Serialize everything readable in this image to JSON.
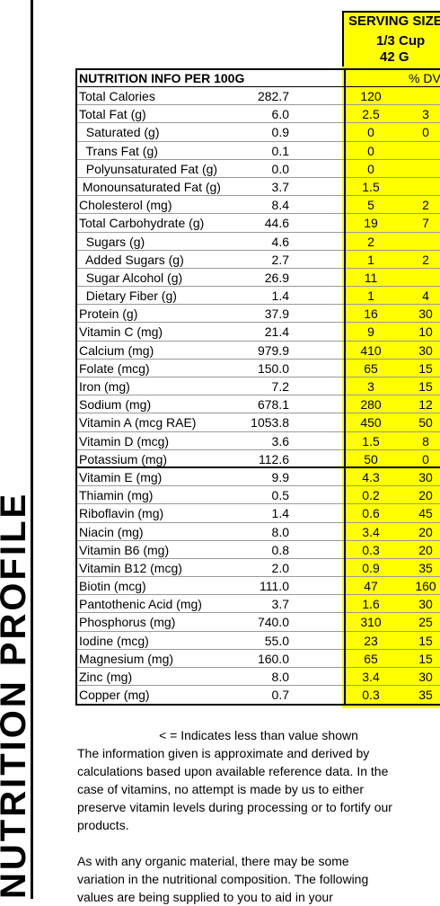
{
  "side_label": "NUTRITION PROFILE",
  "serving": {
    "title": "SERVING SIZE",
    "qty": "1/3 Cup",
    "grams": "42 G"
  },
  "table": {
    "title": "NUTRITION INFO PER 100G",
    "dv_header": "% DV",
    "rows": [
      {
        "name": "Total Calories",
        "value": "282.7",
        "serving": "120",
        "dv": ""
      },
      {
        "name": "Total Fat (g)",
        "value": "6.0",
        "serving": "2.5",
        "dv": "3"
      },
      {
        "name": "  Saturated (g)",
        "value": "0.9",
        "serving": "0",
        "dv": "0"
      },
      {
        "name": "  Trans Fat (g)",
        "value": "0.1",
        "serving": "0",
        "dv": ""
      },
      {
        "name": "  Polyunsaturated Fat (g)",
        "value": "0.0",
        "serving": "0",
        "dv": ""
      },
      {
        "name": " Monounsaturated Fat (g)",
        "value": "3.7",
        "serving": "1.5",
        "dv": ""
      },
      {
        "name": "Cholesterol (mg)",
        "value": "8.4",
        "serving": "5",
        "dv": "2"
      },
      {
        "name": "Total Carbohydrate (g)",
        "value": "44.6",
        "serving": "19",
        "dv": "7"
      },
      {
        "name": "  Sugars (g)",
        "value": "4.6",
        "serving": "2",
        "dv": ""
      },
      {
        "name": "  Added Sugars (g)",
        "value": "2.7",
        "serving": "1",
        "dv": "2"
      },
      {
        "name": "  Sugar Alcohol (g)",
        "value": "26.9",
        "serving": "11",
        "dv": ""
      },
      {
        "name": "  Dietary Fiber (g)",
        "value": "1.4",
        "serving": "1",
        "dv": "4"
      },
      {
        "name": "Protein (g)",
        "value": "37.9",
        "serving": "16",
        "dv": "30"
      },
      {
        "name": "Vitamin C (mg)",
        "value": "21.4",
        "serving": "9",
        "dv": "10"
      },
      {
        "name": "Calcium (mg)",
        "value": "979.9",
        "serving": "410",
        "dv": "30"
      },
      {
        "name": "Folate (mcg)",
        "value": "150.0",
        "serving": "65",
        "dv": "15"
      },
      {
        "name": "Iron (mg)",
        "value": "7.2",
        "serving": "3",
        "dv": "15"
      },
      {
        "name": "Sodium (mg)",
        "value": "678.1",
        "serving": "280",
        "dv": "12"
      },
      {
        "name": "Vitamin A (mcg RAE)",
        "value": "1053.8",
        "serving": "450",
        "dv": "50"
      },
      {
        "name": "Vitamin D (mcg)",
        "value": "3.6",
        "serving": "1.5",
        "dv": "8"
      },
      {
        "name": "Potassium (mg)",
        "value": "112.6",
        "serving": "50",
        "dv": "0"
      },
      {
        "name": "Vitamin E (mg)",
        "value": "9.9",
        "serving": "4.3",
        "dv": "30"
      },
      {
        "name": "Thiamin (mg)",
        "value": "0.5",
        "serving": "0.2",
        "dv": "20"
      },
      {
        "name": "Riboflavin (mg)",
        "value": "1.4",
        "serving": "0.6",
        "dv": "45"
      },
      {
        "name": "Niacin (mg)",
        "value": "8.0",
        "serving": "3.4",
        "dv": "20"
      },
      {
        "name": "Vitamin B6 (mg)",
        "value": "0.8",
        "serving": "0.3",
        "dv": "20"
      },
      {
        "name": "Vitamin B12 (mcg)",
        "value": "2.0",
        "serving": "0.9",
        "dv": "35"
      },
      {
        "name": "Biotin (mcg)",
        "value": "111.0",
        "serving": "47",
        "dv": "160"
      },
      {
        "name": "Pantothenic Acid (mg)",
        "value": "3.7",
        "serving": "1.6",
        "dv": "30"
      },
      {
        "name": "Phosphorus (mg)",
        "value": "740.0",
        "serving": "310",
        "dv": "25"
      },
      {
        "name": "Iodine (mcg)",
        "value": "55.0",
        "serving": "23",
        "dv": "15"
      },
      {
        "name": "Magnesium (mg)",
        "value": "160.0",
        "serving": "65",
        "dv": "15"
      },
      {
        "name": "Zinc (mg)",
        "value": "8.0",
        "serving": "3.4",
        "dv": "30"
      },
      {
        "name": "Copper (mg)",
        "value": "0.7",
        "serving": "0.3",
        "dv": "35"
      }
    ]
  },
  "notes": {
    "legend": "< = Indicates less than value shown",
    "lines": [
      "The information given is approximate and derived by",
      "calculations based upon available reference data.  In the",
      "case of vitamins, no attempt is made by us to either",
      "preserve vitamin levels during processing or to fortify our",
      "products.",
      "",
      "As with any organic material, there may be some",
      "variation in the nutritional composition.  The following",
      "values are being supplied to you to aid in your"
    ]
  }
}
